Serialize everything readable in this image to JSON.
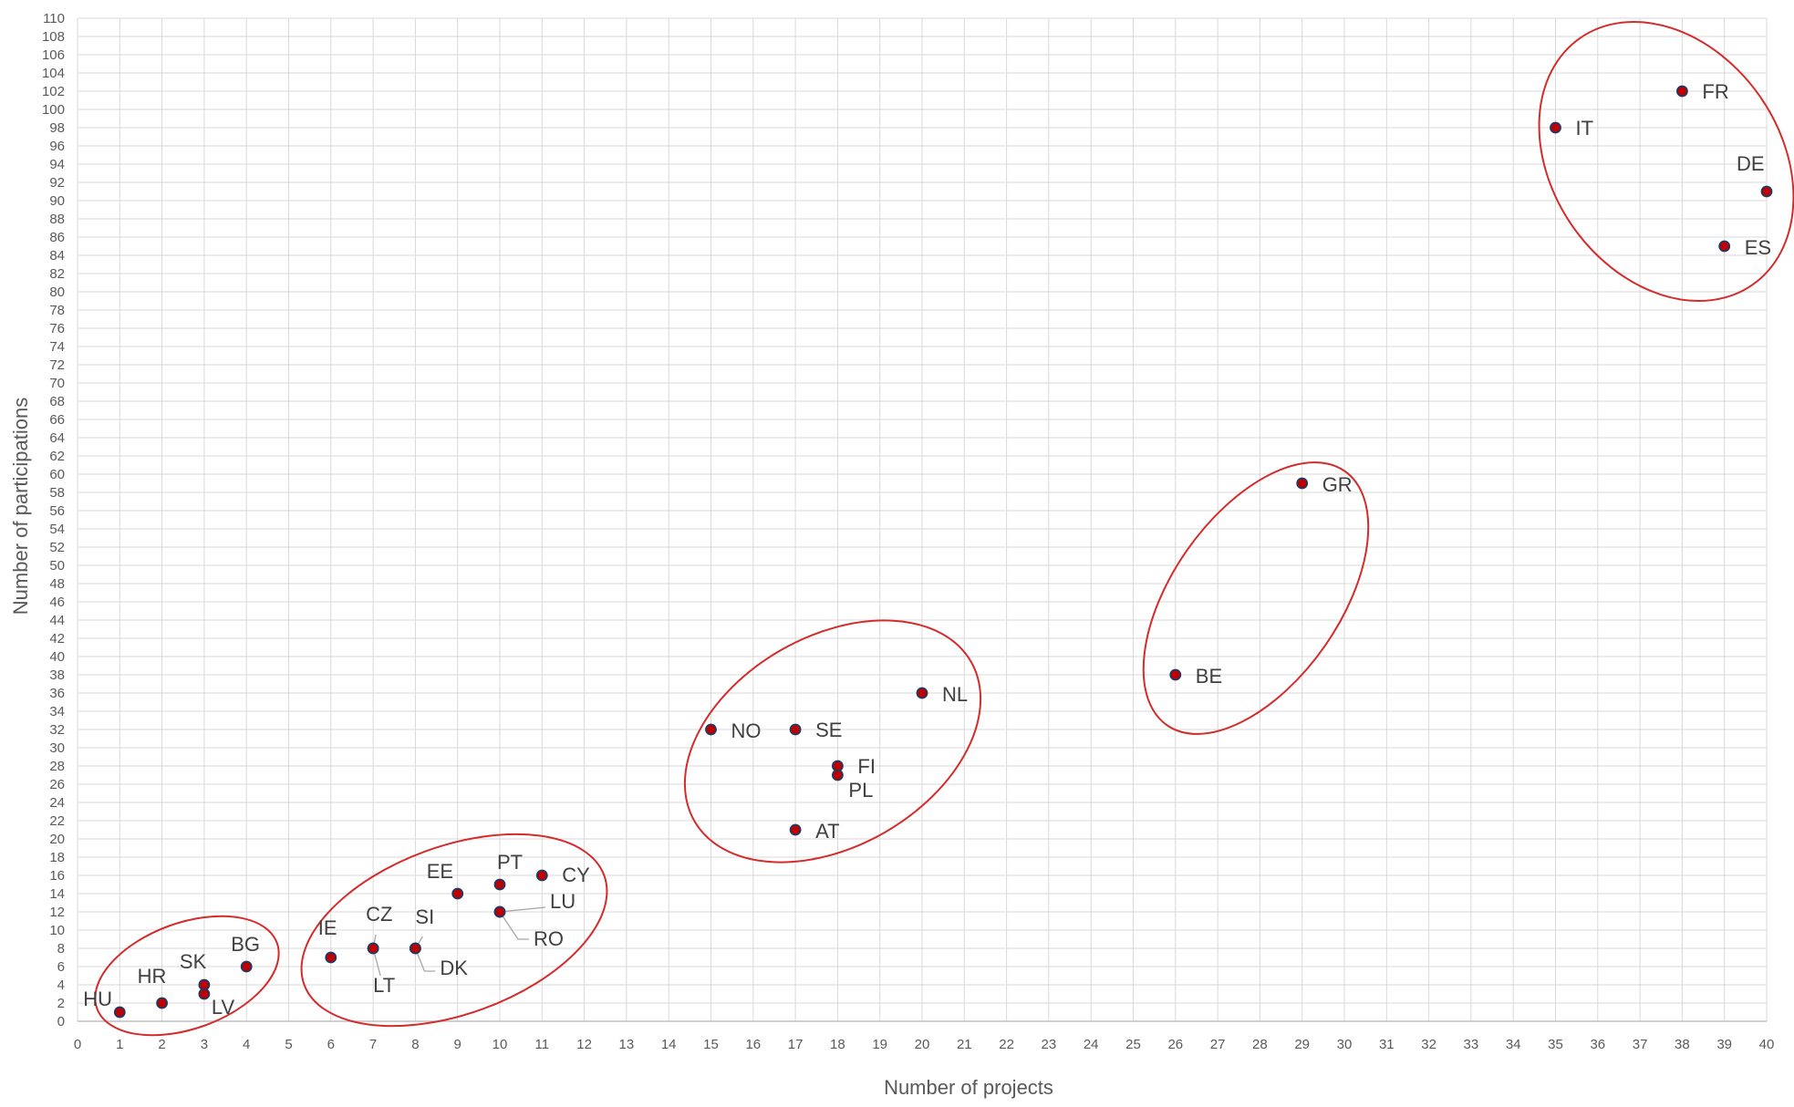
{
  "chart_data": {
    "type": "scatter",
    "title": "",
    "xlabel": "Number of projects",
    "ylabel": "Number of participations",
    "xlim": [
      0,
      40
    ],
    "ylim": [
      0,
      110
    ],
    "x_tick_step": 1,
    "y_tick_step": 2,
    "grid": true,
    "legend": "none",
    "colors": {
      "marker_fill": "#c00000",
      "marker_edge": "#1f3864",
      "cluster_outline": "#d42b2b",
      "gridline": "#d9d9d9",
      "text": "#595959"
    },
    "points": [
      {
        "label": "HU",
        "x": 1,
        "y": 1
      },
      {
        "label": "HR",
        "x": 2,
        "y": 2
      },
      {
        "label": "SK",
        "x": 3,
        "y": 4
      },
      {
        "label": "LV",
        "x": 3,
        "y": 3
      },
      {
        "label": "BG",
        "x": 4,
        "y": 6
      },
      {
        "label": "IE",
        "x": 6,
        "y": 7
      },
      {
        "label": "CZ",
        "x": 7,
        "y": 8
      },
      {
        "label": "LT",
        "x": 7,
        "y": 8
      },
      {
        "label": "SI",
        "x": 8,
        "y": 8
      },
      {
        "label": "DK",
        "x": 8,
        "y": 8
      },
      {
        "label": "EE",
        "x": 9,
        "y": 14
      },
      {
        "label": "PT",
        "x": 10,
        "y": 15
      },
      {
        "label": "LU",
        "x": 10,
        "y": 12
      },
      {
        "label": "RO",
        "x": 10,
        "y": 12
      },
      {
        "label": "CY",
        "x": 11,
        "y": 16
      },
      {
        "label": "NO",
        "x": 15,
        "y": 32
      },
      {
        "label": "SE",
        "x": 17,
        "y": 32
      },
      {
        "label": "AT",
        "x": 17,
        "y": 21
      },
      {
        "label": "FI",
        "x": 18,
        "y": 28
      },
      {
        "label": "PL",
        "x": 18,
        "y": 27
      },
      {
        "label": "NL",
        "x": 20,
        "y": 36
      },
      {
        "label": "BE",
        "x": 26,
        "y": 38
      },
      {
        "label": "GR",
        "x": 29,
        "y": 59
      },
      {
        "label": "IT",
        "x": 35,
        "y": 98
      },
      {
        "label": "FR",
        "x": 38,
        "y": 102
      },
      {
        "label": "ES",
        "x": 39,
        "y": 85
      },
      {
        "label": "DE",
        "x": 40,
        "y": 91
      }
    ],
    "clusters": [
      {
        "members": [
          "HU",
          "HR",
          "SK",
          "LV",
          "BG"
        ]
      },
      {
        "members": [
          "IE",
          "CZ",
          "LT",
          "SI",
          "DK",
          "EE",
          "PT",
          "LU",
          "RO",
          "CY"
        ]
      },
      {
        "members": [
          "NO",
          "SE",
          "AT",
          "FI",
          "PL",
          "NL"
        ]
      },
      {
        "members": [
          "BE",
          "GR"
        ]
      },
      {
        "members": [
          "IT",
          "FR",
          "ES",
          "DE"
        ]
      }
    ]
  }
}
